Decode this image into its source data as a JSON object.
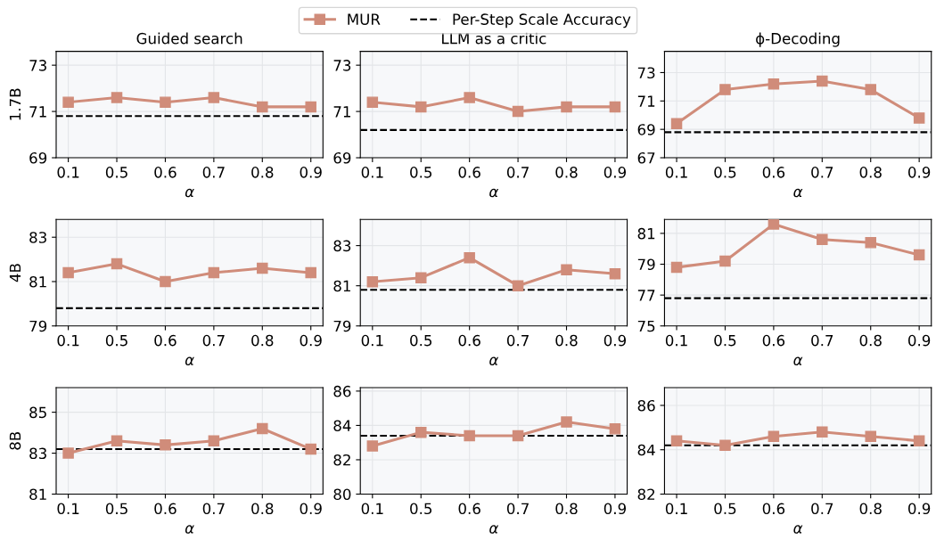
{
  "chart_data": [
    {
      "type": "line",
      "title": "Guided search",
      "ylabel": "1.7B",
      "xlabel": "α",
      "categories": [
        "0.1",
        "0.5",
        "0.6",
        "0.7",
        "0.8",
        "0.9"
      ],
      "series": [
        {
          "name": "MUR",
          "color": "#d08c7a",
          "values": [
            71.4,
            71.6,
            71.4,
            71.6,
            71.2,
            71.2
          ]
        }
      ],
      "ref_lines": [
        {
          "axis": "y",
          "value": 70.8,
          "label": "Per-Step Scale Accuracy",
          "color": "#000000",
          "line_style": "dashed"
        }
      ],
      "ylim": [
        69,
        73.6
      ],
      "yticks": [
        69,
        71,
        73
      ],
      "grid": true,
      "marker": "square",
      "legend": "top"
    },
    {
      "type": "line",
      "title": "LLM as a critic",
      "xlabel": "α",
      "categories": [
        "0.1",
        "0.5",
        "0.6",
        "0.7",
        "0.8",
        "0.9"
      ],
      "series": [
        {
          "color": "#d08c7a",
          "values": [
            71.4,
            71.2,
            71.6,
            71.0,
            71.2,
            71.2
          ]
        }
      ],
      "ref_lines": [
        {
          "axis": "y",
          "value": 70.2,
          "color": "#000000",
          "line_style": "dashed"
        }
      ],
      "ylim": [
        69,
        73.6
      ],
      "yticks": [
        69,
        71,
        73
      ],
      "grid": true,
      "marker": "square"
    },
    {
      "type": "line",
      "title": "ϕ-Decoding",
      "xlabel": "α",
      "categories": [
        "0.1",
        "0.5",
        "0.6",
        "0.7",
        "0.8",
        "0.9"
      ],
      "series": [
        {
          "color": "#d08c7a",
          "values": [
            69.4,
            71.8,
            72.2,
            72.4,
            71.8,
            69.8
          ]
        }
      ],
      "ref_lines": [
        {
          "axis": "y",
          "value": 68.8,
          "color": "#000000",
          "line_style": "dashed"
        }
      ],
      "ylim": [
        67,
        74.5
      ],
      "yticks": [
        67,
        69,
        71,
        73
      ],
      "grid": true,
      "marker": "square"
    },
    {
      "type": "line",
      "ylabel": "4B",
      "xlabel": "α",
      "categories": [
        "0.1",
        "0.5",
        "0.6",
        "0.7",
        "0.8",
        "0.9"
      ],
      "series": [
        {
          "color": "#d08c7a",
          "values": [
            81.4,
            81.8,
            81.0,
            81.4,
            81.6,
            81.4
          ]
        }
      ],
      "ref_lines": [
        {
          "axis": "y",
          "value": 79.8,
          "color": "#000000",
          "line_style": "dashed"
        }
      ],
      "ylim": [
        79,
        83.8
      ],
      "yticks": [
        79,
        81,
        83
      ],
      "grid": true,
      "marker": "square"
    },
    {
      "type": "line",
      "xlabel": "α",
      "categories": [
        "0.1",
        "0.5",
        "0.6",
        "0.7",
        "0.8",
        "0.9"
      ],
      "series": [
        {
          "color": "#d08c7a",
          "values": [
            81.2,
            81.4,
            82.4,
            81.0,
            81.8,
            81.6
          ]
        }
      ],
      "ref_lines": [
        {
          "axis": "y",
          "value": 80.8,
          "color": "#000000",
          "line_style": "dashed"
        }
      ],
      "ylim": [
        79,
        84.3
      ],
      "yticks": [
        79,
        81,
        83
      ],
      "grid": true,
      "marker": "square"
    },
    {
      "type": "line",
      "xlabel": "α",
      "categories": [
        "0.1",
        "0.5",
        "0.6",
        "0.7",
        "0.8",
        "0.9"
      ],
      "series": [
        {
          "color": "#d08c7a",
          "values": [
            78.8,
            79.2,
            81.6,
            80.6,
            80.4,
            79.6
          ]
        }
      ],
      "ref_lines": [
        {
          "axis": "y",
          "value": 76.8,
          "color": "#000000",
          "line_style": "dashed"
        }
      ],
      "ylim": [
        75,
        81.9
      ],
      "yticks": [
        75,
        77,
        79,
        81
      ],
      "grid": true,
      "marker": "square"
    },
    {
      "type": "line",
      "ylabel": "8B",
      "xlabel": "α",
      "categories": [
        "0.1",
        "0.5",
        "0.6",
        "0.7",
        "0.8",
        "0.9"
      ],
      "series": [
        {
          "color": "#d08c7a",
          "values": [
            83.0,
            83.6,
            83.4,
            83.6,
            84.2,
            83.2
          ]
        }
      ],
      "ref_lines": [
        {
          "axis": "y",
          "value": 83.2,
          "color": "#000000",
          "line_style": "dashed"
        }
      ],
      "ylim": [
        81,
        86.2
      ],
      "yticks": [
        81,
        83,
        85
      ],
      "grid": true,
      "marker": "square"
    },
    {
      "type": "line",
      "xlabel": "α",
      "categories": [
        "0.1",
        "0.5",
        "0.6",
        "0.7",
        "0.8",
        "0.9"
      ],
      "series": [
        {
          "color": "#d08c7a",
          "values": [
            82.8,
            83.6,
            83.4,
            83.4,
            84.2,
            83.8
          ]
        }
      ],
      "ref_lines": [
        {
          "axis": "y",
          "value": 83.4,
          "color": "#000000",
          "line_style": "dashed"
        }
      ],
      "ylim": [
        80,
        86.2
      ],
      "yticks": [
        80,
        82,
        84,
        86
      ],
      "grid": true,
      "marker": "square"
    },
    {
      "type": "line",
      "xlabel": "α",
      "categories": [
        "0.1",
        "0.5",
        "0.6",
        "0.7",
        "0.8",
        "0.9"
      ],
      "series": [
        {
          "color": "#d08c7a",
          "values": [
            84.4,
            84.2,
            84.6,
            84.8,
            84.6,
            84.4
          ]
        }
      ],
      "ref_lines": [
        {
          "axis": "y",
          "value": 84.2,
          "color": "#000000",
          "line_style": "dashed"
        }
      ],
      "ylim": [
        82,
        86.8
      ],
      "yticks": [
        82,
        84,
        86
      ],
      "grid": true,
      "marker": "square"
    }
  ]
}
